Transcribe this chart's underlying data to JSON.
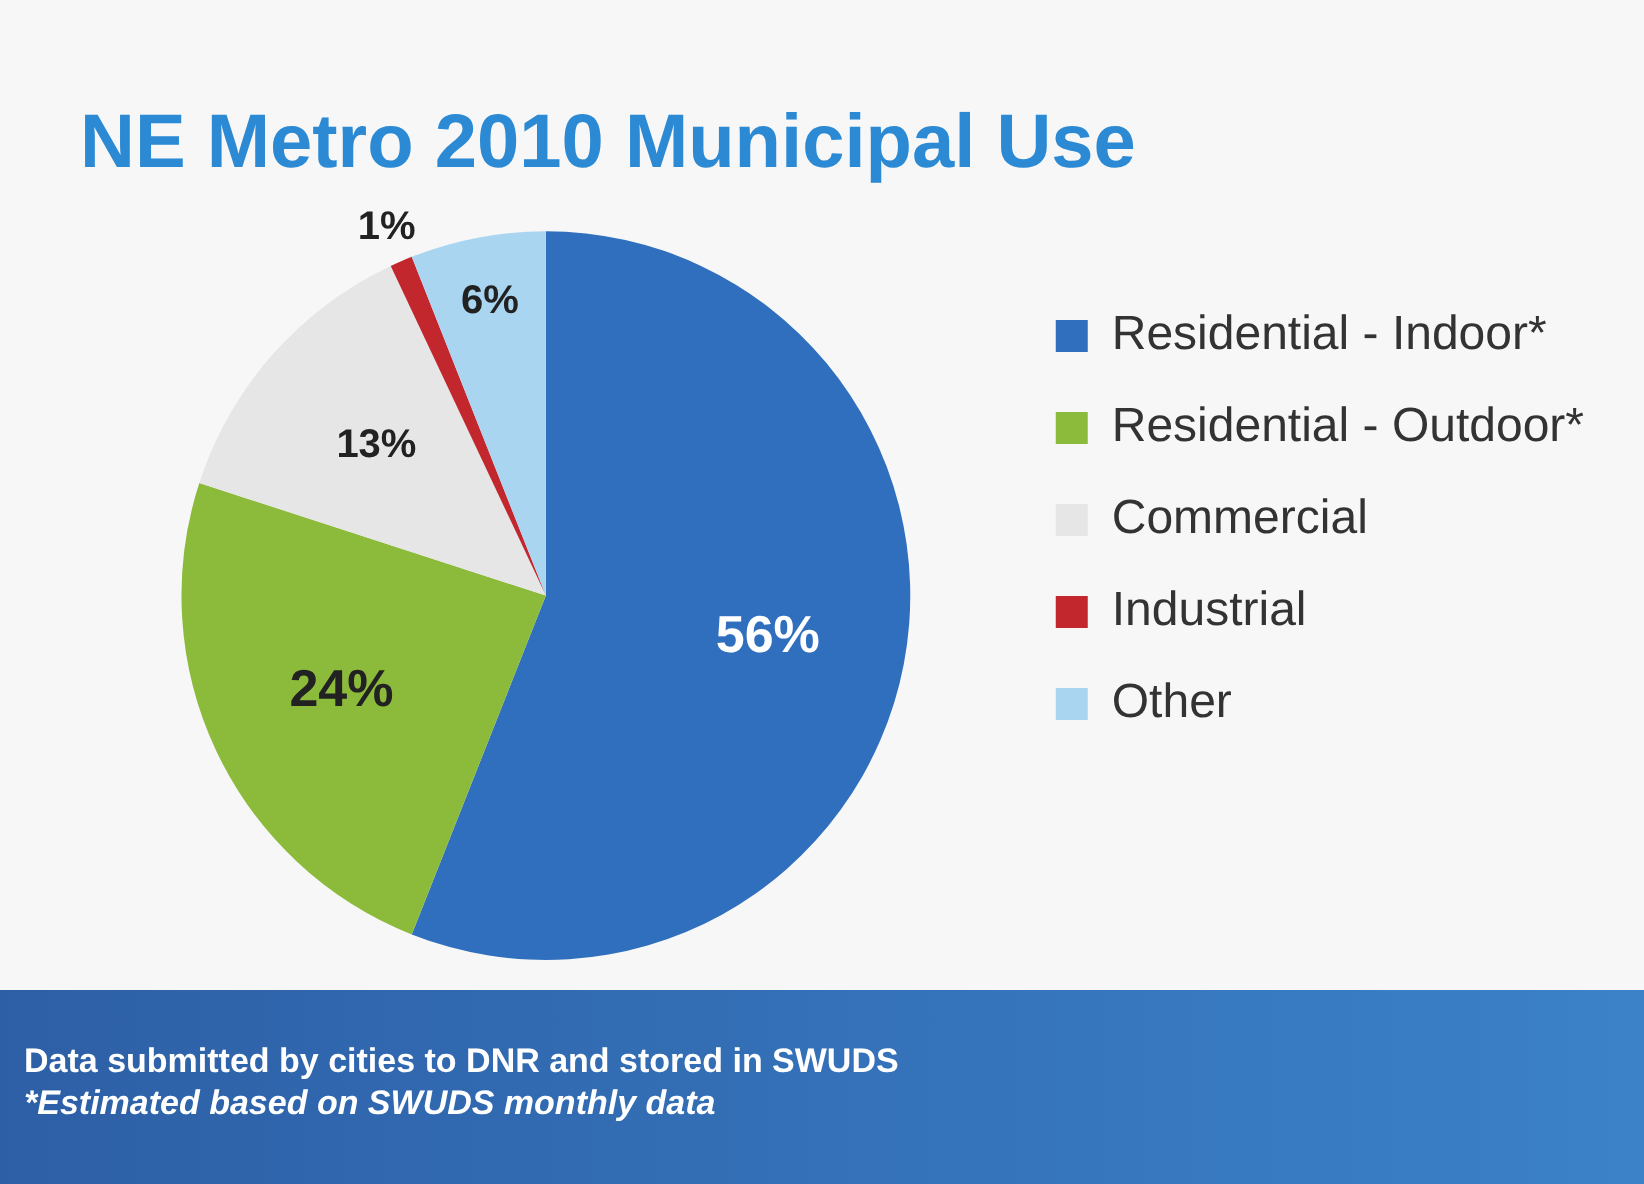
{
  "chart_data": {
    "type": "pie",
    "title": "NE Metro 2010 Municipal Use",
    "categories": [
      "Residential - Indoor*",
      "Residential - Outdoor*",
      "Commercial",
      "Industrial",
      "Other"
    ],
    "values": [
      56,
      24,
      13,
      1,
      6
    ],
    "colors": [
      "#2f6fbe",
      "#8cbb3c",
      "#e6e6e6",
      "#c1272d",
      "#a9d5f0"
    ],
    "value_labels": [
      "56%",
      "24%",
      "13%",
      "1%",
      "6%"
    ],
    "legend": "right",
    "annotations": [
      "Data submitted by cities to DNR and stored in SWUDS",
      "*Estimated based on SWUDS monthly data"
    ]
  }
}
